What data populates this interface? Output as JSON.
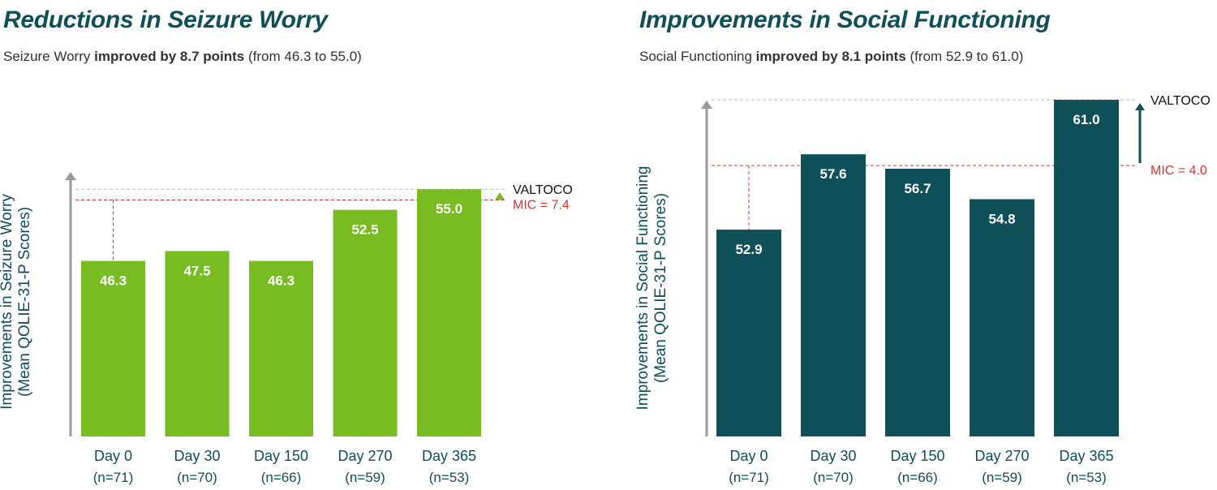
{
  "left": {
    "title": "Reductions in Seizure Worry",
    "subtitle_pre": "Seizure Worry ",
    "subtitle_bold": "improved by 8.7 points",
    "subtitle_post": " (from 46.3 to 55.0)"
  },
  "right": {
    "title": "Improvements in Social Functioning",
    "subtitle_pre": "Social Functioning ",
    "subtitle_bold": "improved by 8.1 points",
    "subtitle_post": " (from 52.9 to 61.0)"
  },
  "chart_data": [
    {
      "type": "bar",
      "ylabel_line1": "Improvements in Seizure Worry",
      "ylabel_line2": "(Mean QOLIE-31-P Scores)",
      "categories": [
        "Day 0",
        "Day 30",
        "Day 150",
        "Day 270",
        "Day 365"
      ],
      "sample_sizes": [
        "(n=71)",
        "(n=70)",
        "(n=66)",
        "(n=59)",
        "(n=53)"
      ],
      "values": [
        46.3,
        47.5,
        46.3,
        52.5,
        55.0
      ],
      "value_labels": [
        "46.3",
        "47.5",
        "46.3",
        "52.5",
        "55.0"
      ],
      "ylim": [
        25,
        56.5
      ],
      "bar_color": "#78bc22",
      "arrow_color": "#78bc22",
      "valtoco_label": "VALTOCO",
      "mic_label": "MIC = 7.4",
      "mic_value": 7.4,
      "grid": false
    },
    {
      "type": "bar",
      "ylabel_line1": "Improvements in Social Functioning",
      "ylabel_line2": "(Mean QOLIE-31-P Scores)",
      "categories": [
        "Day 0",
        "Day 30",
        "Day 150",
        "Day 270",
        "Day 365"
      ],
      "sample_sizes": [
        "(n=71)",
        "(n=70)",
        "(n=66)",
        "(n=59)",
        "(n=53)"
      ],
      "values": [
        52.9,
        57.6,
        56.7,
        54.8,
        61.0
      ],
      "value_labels": [
        "52.9",
        "57.6",
        "56.7",
        "54.8",
        "61.0"
      ],
      "ylim": [
        40,
        61
      ],
      "bar_color": "#0e4f58",
      "arrow_color": "#0e4f58",
      "valtoco_label": "VALTOCO",
      "mic_label": "MIC = 4.0",
      "mic_value": 4.0,
      "grid": false
    }
  ]
}
